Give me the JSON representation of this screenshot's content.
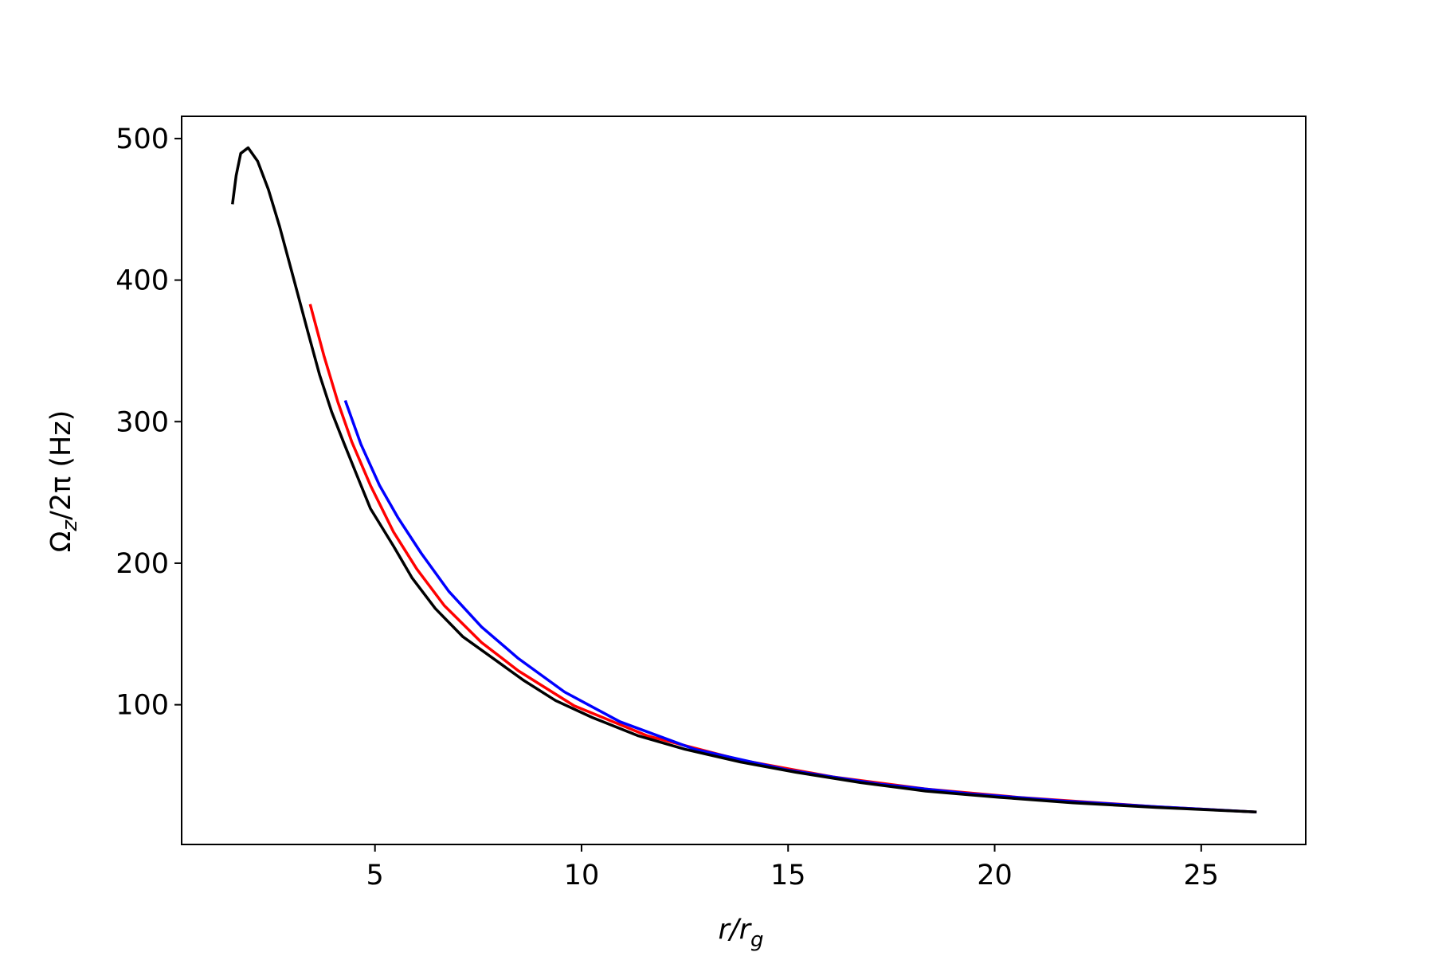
{
  "chart_data": {
    "type": "line",
    "x_label_parts": [
      "r/r",
      "g"
    ],
    "y_label_parts": [
      "Ω",
      "z",
      "/2π (Hz)"
    ],
    "xlim": [
      0.32,
      27.53
    ],
    "ylim": [
      1.3,
      515.7
    ],
    "xticks": [
      5,
      10,
      15,
      20,
      25
    ],
    "yticks": [
      100,
      200,
      300,
      400,
      500
    ],
    "series": [
      {
        "color": "#ff0000",
        "x": [
          3.43,
          3.77,
          4.1,
          4.44,
          4.89,
          5.45,
          6.01,
          6.68,
          7.58,
          8.47,
          9.82,
          11.6,
          13.85,
          16.09,
          18.33,
          20.57,
          23.9,
          26.34
        ],
        "values": [
          383,
          346,
          314,
          285.6,
          255,
          222,
          196,
          170,
          144,
          124,
          99.3,
          78,
          61,
          49,
          40.5,
          34.6,
          28,
          24.2
        ]
      },
      {
        "color": "#0000ff",
        "x": [
          4.28,
          4.66,
          5.11,
          5.56,
          6.12,
          6.79,
          7.58,
          8.47,
          9.59,
          10.93,
          12.73,
          14.97,
          17.2,
          19.45,
          21.69,
          23.9,
          26.34
        ],
        "values": [
          315,
          284,
          255,
          232,
          207,
          180,
          155,
          132.7,
          109,
          88,
          68.6,
          54,
          44,
          37,
          32,
          28,
          24.2
        ]
      },
      {
        "color": "#000000",
        "x": [
          1.55,
          1.64,
          1.75,
          1.93,
          2.16,
          2.42,
          2.69,
          3.05,
          3.37,
          3.66,
          3.95,
          4.26,
          4.55,
          4.89,
          5.45,
          5.9,
          6.46,
          7.13,
          7.8,
          8.58,
          9.37,
          10.26,
          11.38,
          12.5,
          13.85,
          15.19,
          16.76,
          18.33,
          20.12,
          21.9,
          23.9,
          26.34
        ],
        "values": [
          453.6,
          473.9,
          489.5,
          493.5,
          484,
          464,
          438,
          399,
          364,
          333,
          307,
          284,
          263,
          238.6,
          212,
          189.5,
          168,
          148,
          134,
          117.6,
          103,
          91,
          78,
          68.6,
          59.5,
          52.3,
          45,
          39,
          34.6,
          30.7,
          27.5,
          24.2
        ]
      }
    ]
  }
}
